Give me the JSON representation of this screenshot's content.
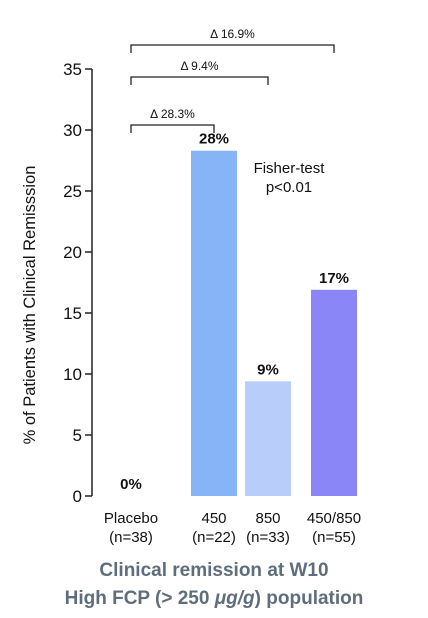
{
  "chart_data": {
    "type": "bar",
    "title": "",
    "ylabel": "% of Patients with Clinical Remisssion",
    "xlabel": "",
    "ylim": [
      0,
      35
    ],
    "yticks": [
      0,
      5,
      10,
      15,
      20,
      25,
      30,
      35
    ],
    "grid": false,
    "categories": [
      {
        "name": "Placebo",
        "n": "(n=38)"
      },
      {
        "name": "450",
        "n": "(n=22)"
      },
      {
        "name": "850",
        "n": "(n=33)"
      },
      {
        "name": "450/850",
        "n": "(n=55)"
      }
    ],
    "values": [
      0,
      28.3,
      9.4,
      16.9
    ],
    "data_labels": [
      "0%",
      "28%",
      "9%",
      "17%"
    ],
    "bar_colors": [
      "#ffffff",
      "#86b4f7",
      "#b8cdfa",
      "#8a86f8"
    ],
    "brackets": [
      {
        "from": 0,
        "to": 1,
        "label": "Δ 28.3%"
      },
      {
        "from": 0,
        "to": 2,
        "label": "Δ 9.4%"
      },
      {
        "from": 0,
        "to": 3,
        "label": "Δ 16.9%"
      }
    ],
    "annotation": [
      "Fisher-test",
      "p<0.01"
    ]
  },
  "caption": {
    "line1": "Clinical remission at W10",
    "line2_prefix": "High FCP (> 250 ",
    "line2_unit": "μg/g",
    "line2_suffix": ") population"
  }
}
